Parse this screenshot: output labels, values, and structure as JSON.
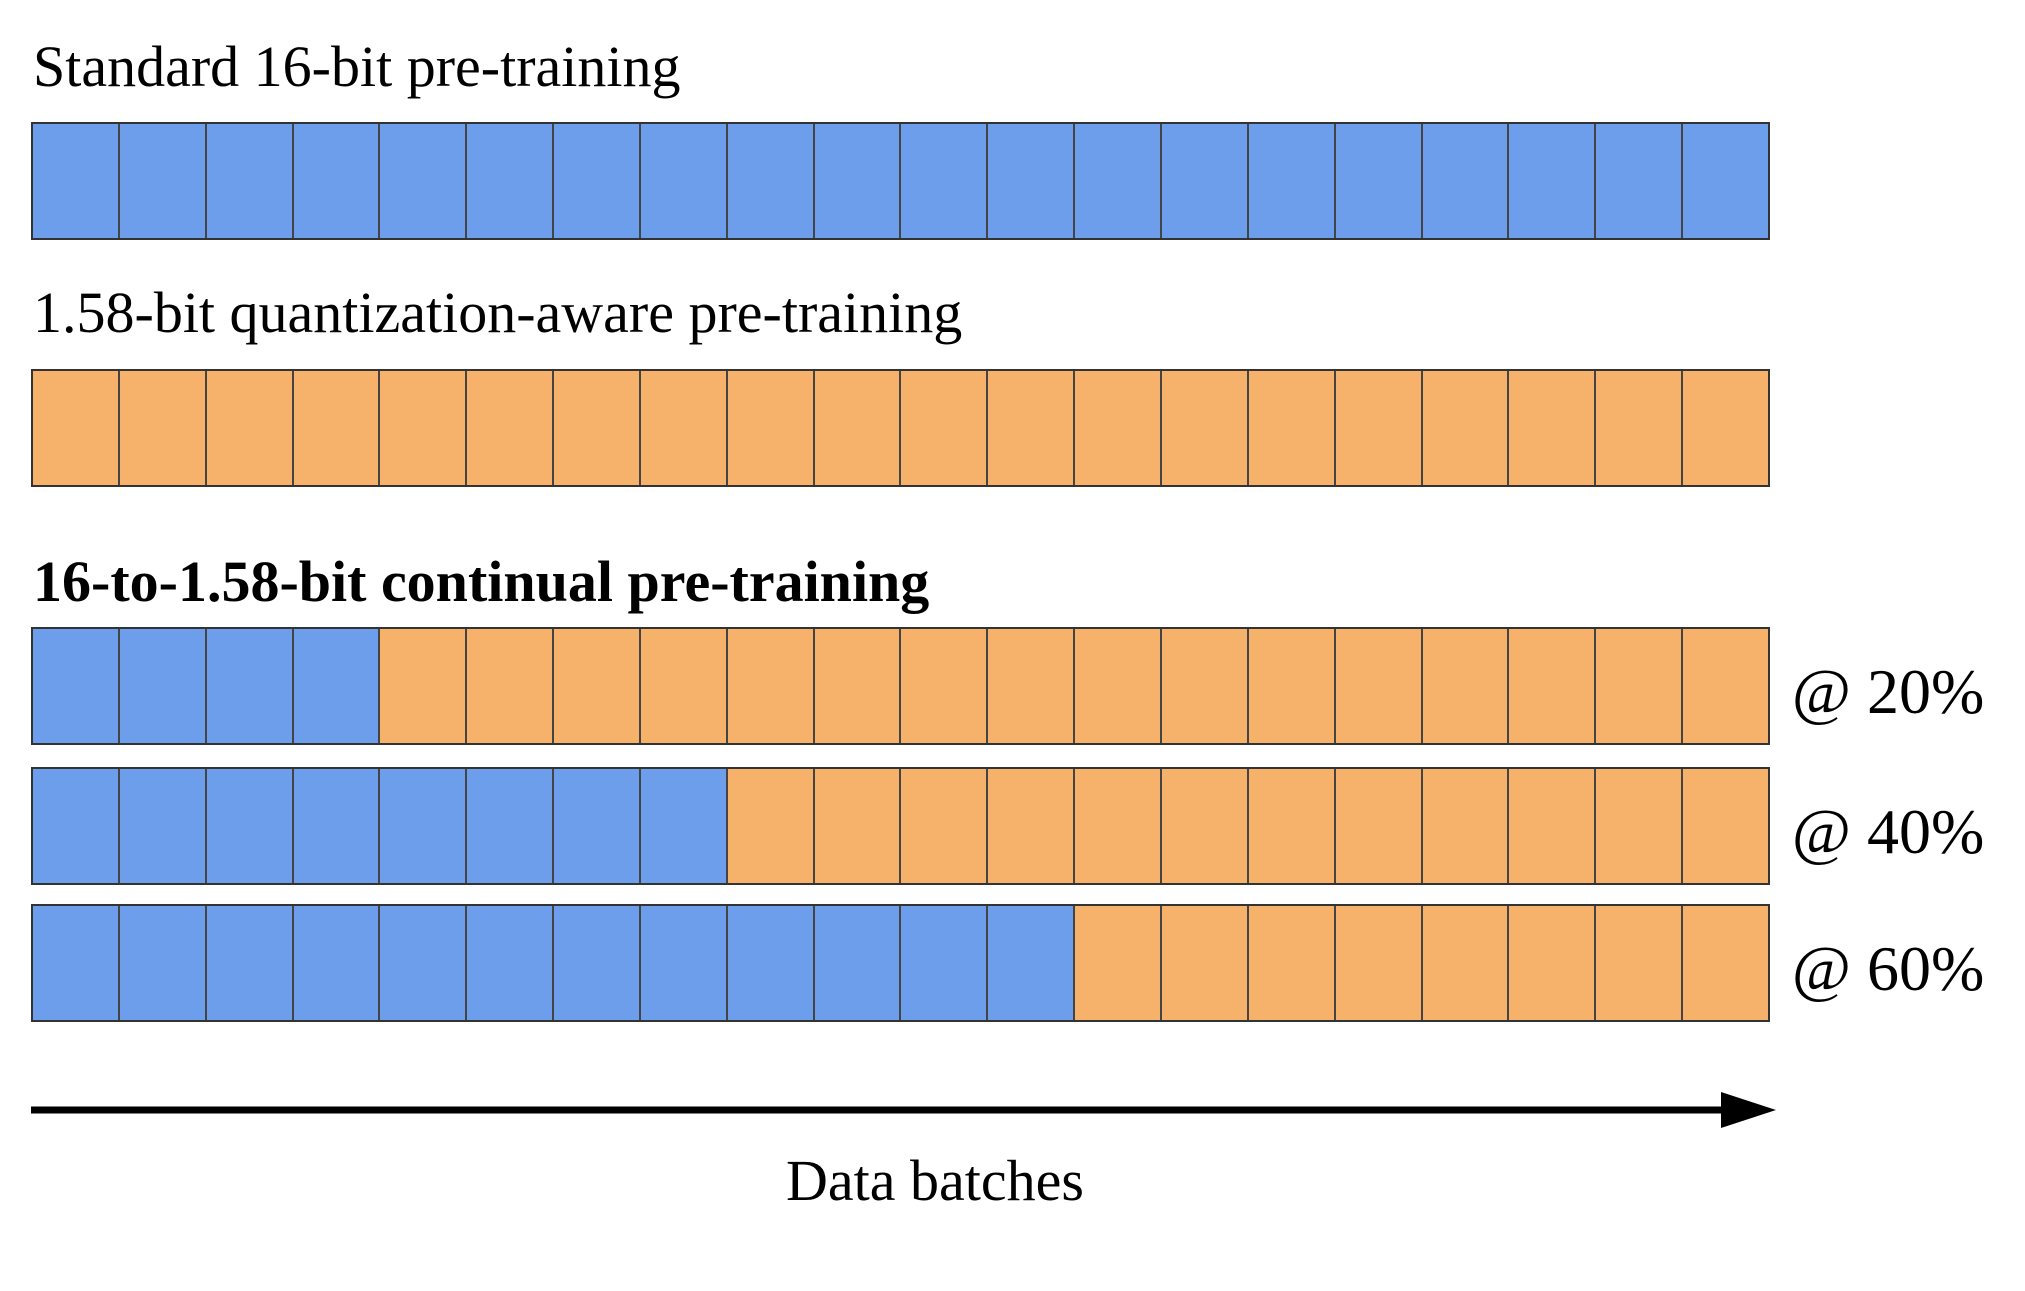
{
  "colors": {
    "bit16": "#6d9eeb",
    "bit158": "#f6b26b",
    "border": "#444444"
  },
  "total_batches": 20,
  "sections": {
    "standard": {
      "title": "Standard 16-bit pre-training",
      "blue_batches": 20
    },
    "qat": {
      "title": "1.58-bit quantization-aware pre-training",
      "blue_batches": 0
    },
    "continual": {
      "title": "16-to-1.58-bit continual pre-training",
      "rows": [
        {
          "label": "@ 20%",
          "blue_batches": 4
        },
        {
          "label": "@ 40%",
          "blue_batches": 8
        },
        {
          "label": "@ 60%",
          "blue_batches": 12
        }
      ]
    }
  },
  "axis": {
    "label": "Data batches"
  }
}
